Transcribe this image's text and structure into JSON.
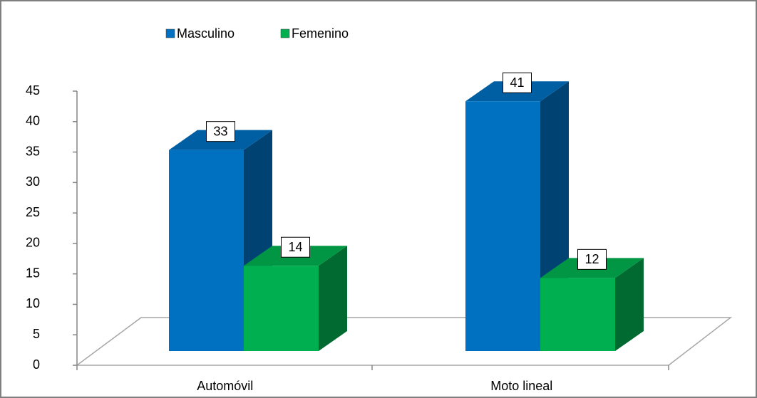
{
  "chart_data": {
    "type": "bar3d",
    "categories": [
      "Automóvil",
      "Moto lineal"
    ],
    "series": [
      {
        "name": "Masculino",
        "color": "#0070c0",
        "values": [
          33,
          41
        ]
      },
      {
        "name": "Femenino",
        "color": "#00b050",
        "values": [
          14,
          12
        ]
      }
    ],
    "ylim": [
      0,
      45
    ],
    "yticks": [
      0,
      5,
      10,
      15,
      20,
      25,
      30,
      35,
      40,
      45
    ],
    "legend": "top"
  }
}
